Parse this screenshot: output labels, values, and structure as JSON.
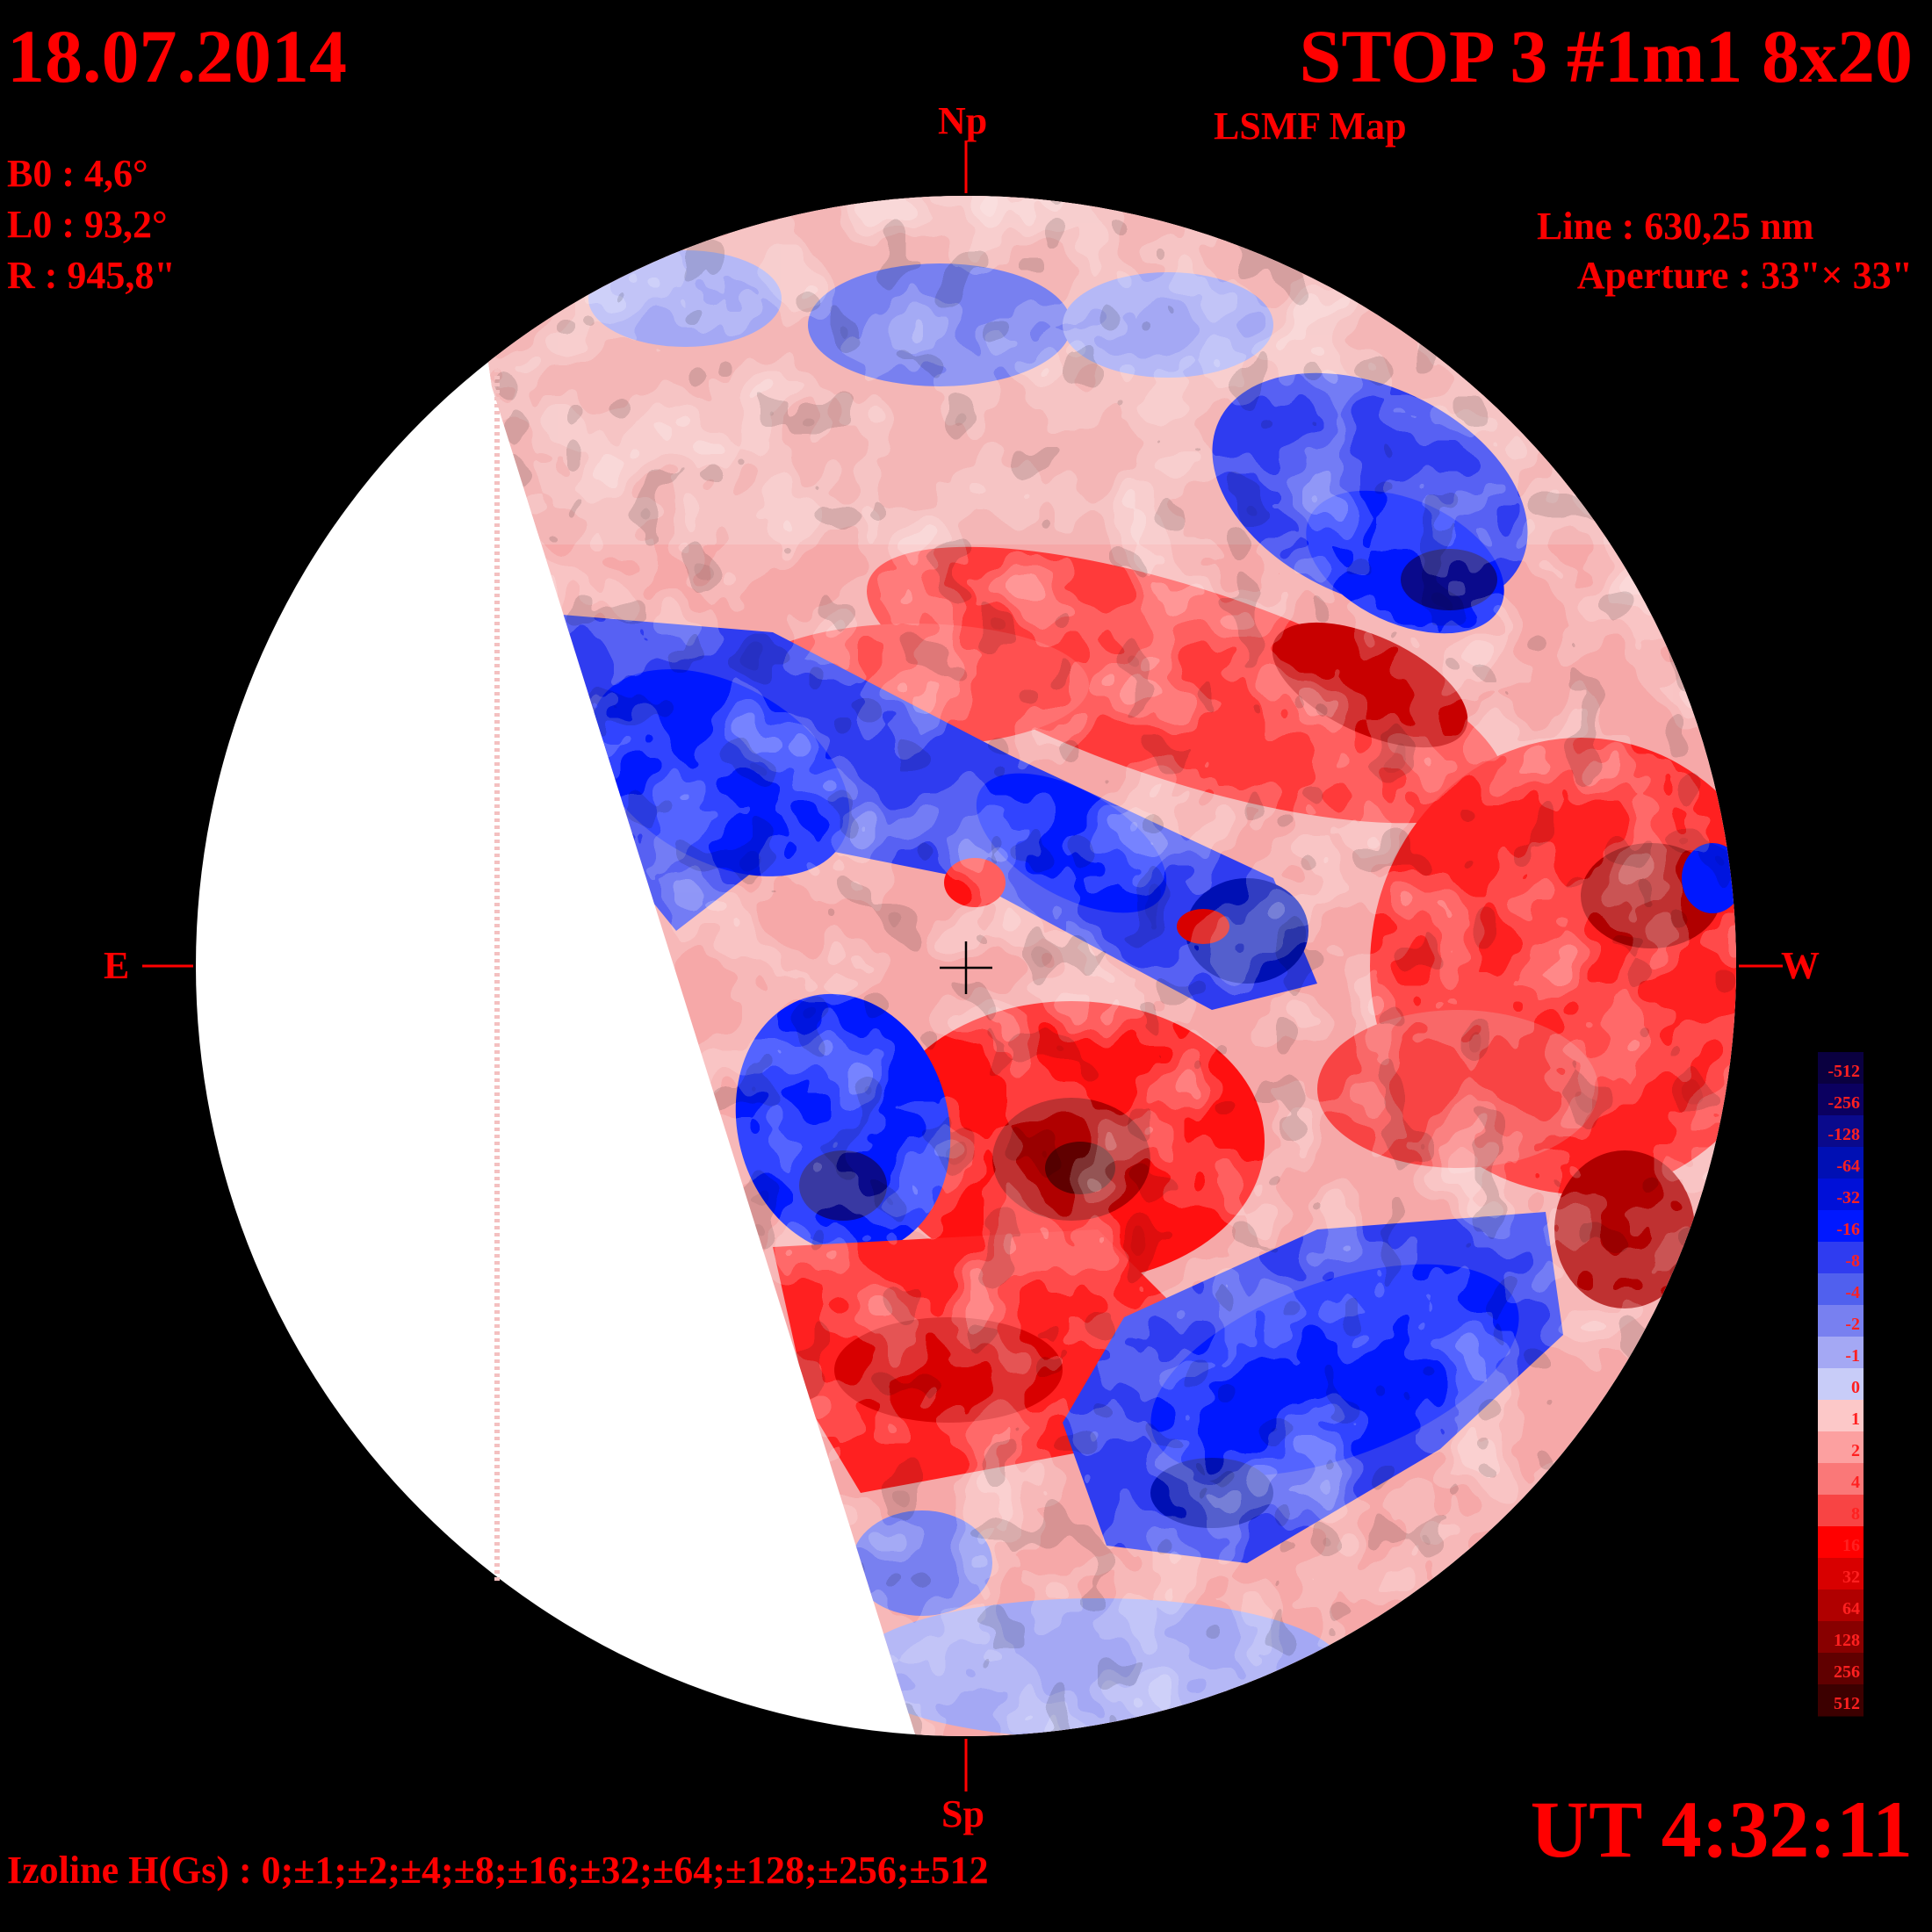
{
  "header": {
    "date": "18.07.2014",
    "title": "STOP 3 #1m1 8x20",
    "subtitle": "LSMF  Map",
    "time": "UT 4:32:11"
  },
  "params": {
    "b0": "B0 : 4,6°",
    "l0": "L0 : 93,2°",
    "radius": "R  : 945,8\"",
    "line": "Line :  630,25 nm",
    "aperture": "Aperture : 33\"× 33\""
  },
  "axes": {
    "north": "Np",
    "south": "Sp",
    "east": "E",
    "west": "W"
  },
  "footer": {
    "izoline": "Izoline H(Gs) : 0;±1;±2;±4;±8;±16;±32;±64;±128;±256;±512"
  },
  "legend": {
    "levels": [
      {
        "label": "-512",
        "color": "#0a0040"
      },
      {
        "label": "-256",
        "color": "#0b0060"
      },
      {
        "label": "-128",
        "color": "#0a0a8c"
      },
      {
        "label": "-64",
        "color": "#0010b4"
      },
      {
        "label": "-32",
        "color": "#0010d8"
      },
      {
        "label": "-16",
        "color": "#0018ff"
      },
      {
        "label": "-8",
        "color": "#2f3cf0"
      },
      {
        "label": "-4",
        "color": "#5060ee"
      },
      {
        "label": "-2",
        "color": "#7880f0"
      },
      {
        "label": "-1",
        "color": "#a4a8f4"
      },
      {
        "label": "0",
        "color": "#c8ccf8"
      },
      {
        "label": "1",
        "color": "#fcc8c8"
      },
      {
        "label": "2",
        "color": "#fca0a0"
      },
      {
        "label": "4",
        "color": "#fa7878"
      },
      {
        "label": "8",
        "color": "#f84444"
      },
      {
        "label": "16",
        "color": "#ff0000"
      },
      {
        "label": "32",
        "color": "#d80000"
      },
      {
        "label": "64",
        "color": "#b00000"
      },
      {
        "label": "128",
        "color": "#880000"
      },
      {
        "label": "256",
        "color": "#600000"
      },
      {
        "label": "512",
        "color": "#3c0000"
      }
    ]
  },
  "colors": {
    "text": "#ff0000",
    "background": "#000000",
    "blank_region": "#ffffff",
    "negative": "#0018ff",
    "positive": "#ff0000"
  }
}
